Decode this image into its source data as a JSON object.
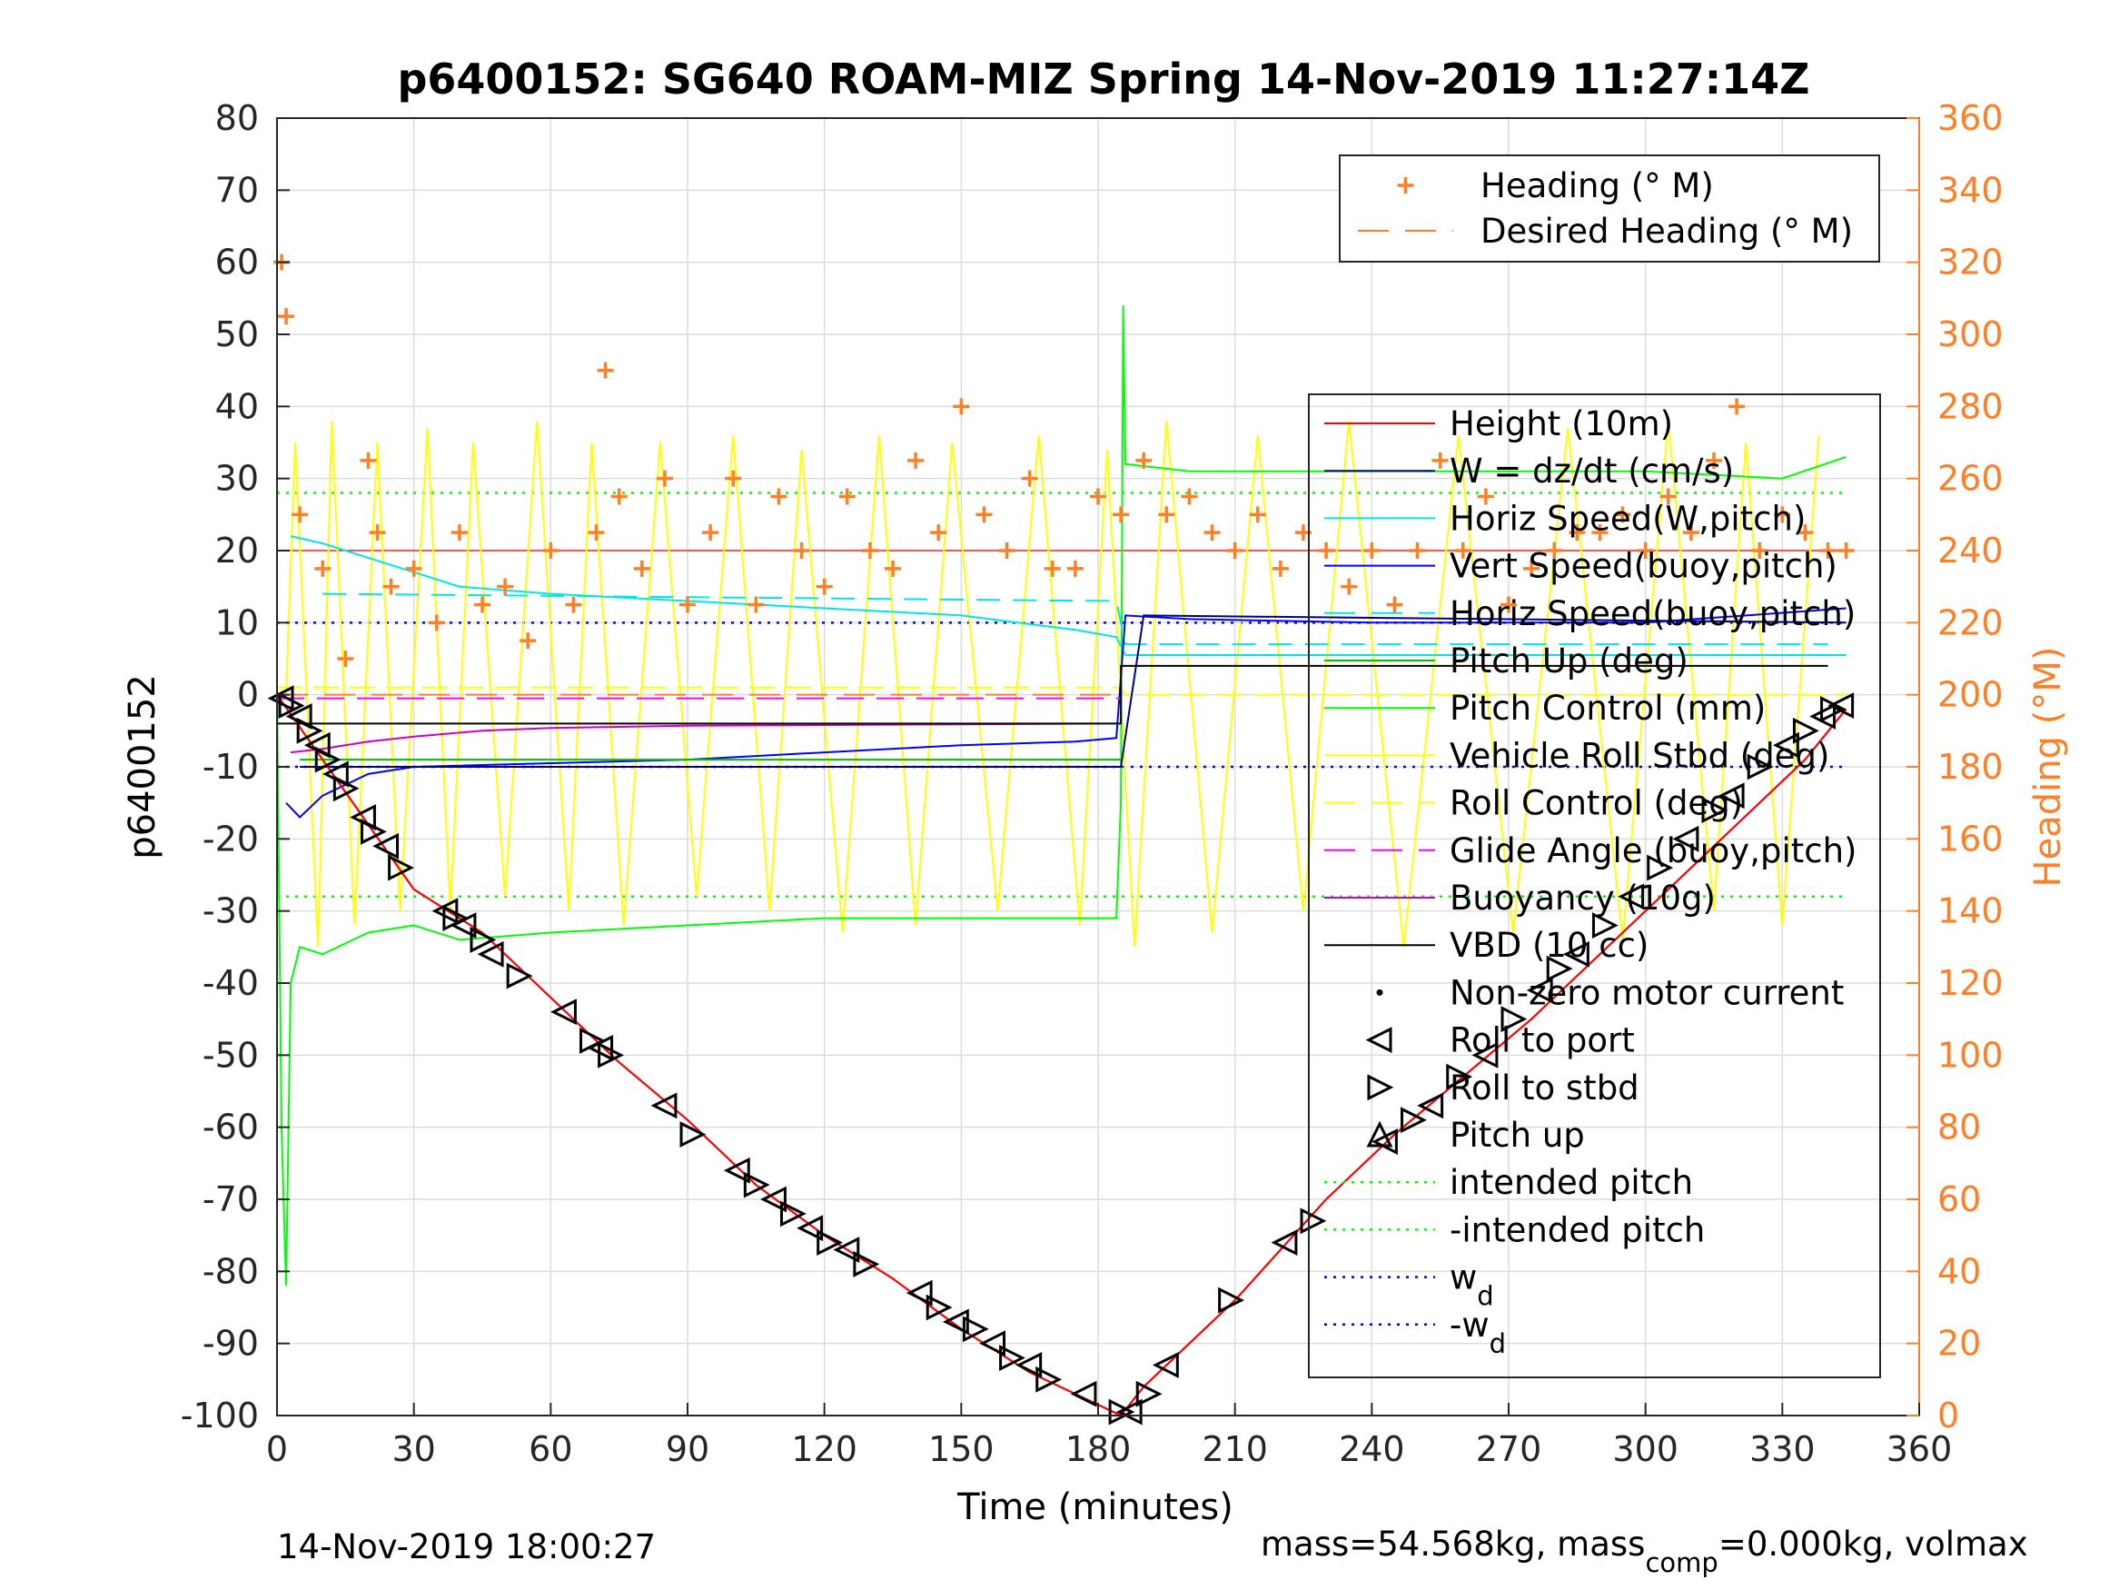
{
  "chart_data": {
    "type": "line",
    "title": "p6400152: SG640 ROAM-MIZ Spring 14-Nov-2019 11:27:14Z",
    "xlabel": "Time (minutes)",
    "ylabel_left": "p6400152",
    "ylabel_right": "Heading (°M)",
    "xlim": [
      0,
      360
    ],
    "ylim_left": [
      -100,
      80
    ],
    "ylim_right": [
      0,
      360
    ],
    "x_ticks": [
      "0",
      "30",
      "60",
      "90",
      "120",
      "150",
      "180",
      "210",
      "240",
      "270",
      "300",
      "330",
      "360"
    ],
    "y_ticks_left": [
      "80",
      "70",
      "60",
      "50",
      "40",
      "30",
      "20",
      "10",
      "0",
      "-10",
      "-20",
      "-30",
      "-40",
      "-50",
      "-60",
      "-70",
      "-80",
      "-90",
      "-100"
    ],
    "y_ticks_right": [
      "360",
      "340",
      "320",
      "300",
      "280",
      "260",
      "240",
      "220",
      "200",
      "180",
      "160",
      "140",
      "120",
      "100",
      "80",
      "60",
      "40",
      "20",
      "0"
    ],
    "grid": true,
    "footer_left": "14-Nov-2019 18:00:27",
    "footer_right": {
      "a": "mass=54.568kg, mass",
      "sub": "comp",
      "b": "=0.000kg, volmax"
    },
    "legend_heading": [
      {
        "label": "Heading (° M)",
        "color": "#ff7f27",
        "style": "plus"
      },
      {
        "label": "Desired Heading (° M)",
        "color": "#ff7f27",
        "style": "dash"
      }
    ],
    "legend_main": [
      {
        "label": "Height (10m)",
        "color": "#ff0000",
        "style": "line"
      },
      {
        "label": "W = dz/dt (cm/s)",
        "color": "#000080",
        "style": "line"
      },
      {
        "label": "Horiz Speed(W,pitch)",
        "color": "#00e5e5",
        "style": "line"
      },
      {
        "label": "Vert Speed(buoy,pitch)",
        "color": "#0000ff",
        "style": "line"
      },
      {
        "label": "Horiz Speed(buoy,pitch)",
        "color": "#00e5e5",
        "style": "dash"
      },
      {
        "label": "Pitch Up (deg)",
        "color": "#00c000",
        "style": "line"
      },
      {
        "label": "Pitch Control (mm)",
        "color": "#00ff00",
        "style": "line"
      },
      {
        "label": "Vehicle Roll Stbd (deg)",
        "color": "#ffff00",
        "style": "line"
      },
      {
        "label": "Roll Control (deg)",
        "color": "#ffff00",
        "style": "dash"
      },
      {
        "label": "Glide Angle (buoy,pitch)",
        "color": "#ff00ff",
        "style": "dash"
      },
      {
        "label": "Buoyancy (10g)",
        "color": "#cc00cc",
        "style": "line"
      },
      {
        "label": "VBD (10 cc)",
        "color": "#000000",
        "style": "line"
      },
      {
        "label": "Non-zero motor current",
        "color": "#000000",
        "style": "dot"
      },
      {
        "label": "Roll to port",
        "color": "#000000",
        "style": "tri-left"
      },
      {
        "label": "Roll to stbd",
        "color": "#000000",
        "style": "tri-right"
      },
      {
        "label": "Pitch up",
        "color": "#000000",
        "style": "tri-up"
      },
      {
        "label": "intended pitch",
        "color": "#00ff00",
        "style": "dot-line"
      },
      {
        "label": "-intended pitch",
        "color": "#00ff00",
        "style": "dot-line"
      },
      {
        "label": "w",
        "sub": "d",
        "color": "#0000ff",
        "style": "dot-line"
      },
      {
        "label": "-w",
        "sub": "d",
        "color": "#0000ff",
        "style": "dot-line"
      }
    ],
    "series": {
      "depth_profile": {
        "name": "Height (10m)",
        "color": "#ff0000",
        "x": [
          0,
          10,
          20,
          30,
          45,
          60,
          75,
          90,
          105,
          120,
          135,
          150,
          165,
          175,
          185,
          190,
          200,
          210,
          220,
          230,
          245,
          260,
          275,
          290,
          305,
          320,
          335,
          344
        ],
        "y": [
          0,
          -9,
          -18,
          -27,
          -33,
          -42,
          -51,
          -59,
          -68,
          -75,
          -81,
          -88,
          -94,
          -97,
          -100,
          -96,
          -90,
          -84,
          -77,
          -70,
          -61,
          -53,
          -45,
          -36,
          -27,
          -18,
          -9,
          -2
        ]
      },
      "heading": {
        "name": "Heading (° M)",
        "color": "#ff7f27",
        "x": [
          1,
          2,
          5,
          10,
          15,
          20,
          22,
          25,
          30,
          35,
          40,
          45,
          50,
          55,
          60,
          65,
          70,
          72,
          75,
          80,
          85,
          90,
          95,
          100,
          105,
          110,
          115,
          120,
          125,
          130,
          135,
          140,
          145,
          150,
          155,
          160,
          165,
          170,
          175,
          180,
          185,
          190,
          195,
          200,
          205,
          210,
          215,
          220,
          225,
          230,
          235,
          240,
          245,
          250,
          255,
          260,
          265,
          270,
          275,
          280,
          285,
          290,
          295,
          300,
          305,
          310,
          315,
          320,
          325,
          330,
          335,
          340,
          344
        ],
        "y": [
          320,
          305,
          250,
          235,
          210,
          265,
          245,
          230,
          235,
          220,
          245,
          225,
          230,
          215,
          240,
          225,
          245,
          290,
          255,
          235,
          260,
          225,
          245,
          260,
          225,
          255,
          240,
          230,
          255,
          240,
          235,
          265,
          245,
          280,
          250,
          240,
          260,
          235,
          235,
          255,
          250,
          265,
          250,
          255,
          245,
          240,
          250,
          235,
          245,
          240,
          230,
          240,
          225,
          240,
          265,
          240,
          255,
          225,
          235,
          240,
          245,
          245,
          250,
          240,
          255,
          245,
          265,
          280,
          240,
          250,
          245,
          240,
          240
        ]
      },
      "desired_heading": {
        "name": "Desired Heading (° M)",
        "color": "#ff7f27",
        "x": [
          0,
          185
        ],
        "y": [
          200,
          200
        ]
      },
      "pitch_control": {
        "name": "Pitch Control (mm)",
        "color": "#00ff00",
        "x": [
          0,
          1,
          2,
          3,
          5,
          10,
          20,
          30,
          40,
          60,
          90,
          120,
          150,
          170,
          184,
          185,
          185.5,
          186,
          200,
          240,
          270,
          300,
          330,
          344
        ],
        "y": [
          0,
          -60,
          -82,
          -40,
          -35,
          -36,
          -33,
          -32,
          -34,
          -33,
          -32,
          -31,
          -31,
          -31,
          -31,
          -15,
          54,
          32,
          31,
          31,
          31,
          31,
          30,
          33
        ]
      },
      "horiz_speed": {
        "name": "Horiz Speed(W,pitch)",
        "color": "#00e5e5",
        "x": [
          3,
          10,
          20,
          30,
          40,
          60,
          90,
          120,
          150,
          175,
          184,
          186,
          240,
          300,
          344
        ],
        "y": [
          22,
          21,
          19,
          17,
          15,
          14,
          13,
          12,
          11,
          9,
          8,
          5.5,
          5.5,
          5.5,
          5.5
        ]
      },
      "vert_speed": {
        "name": "Vert Speed(buoy,pitch)",
        "color": "#0000ff",
        "x": [
          2,
          5,
          10,
          20,
          30,
          60,
          90,
          120,
          150,
          175,
          184,
          186,
          200,
          240,
          300,
          344
        ],
        "y": [
          -15,
          -17,
          -14,
          -11,
          -10,
          -9.5,
          -9,
          -8,
          -7,
          -6.5,
          -6,
          11,
          10.5,
          10,
          10,
          12
        ]
      },
      "vbd": {
        "name": "VBD (10 cc)",
        "color": "#000000",
        "x": [
          0,
          185,
          185,
          340
        ],
        "y": [
          -4,
          -4,
          4,
          4
        ]
      },
      "buoyancy": {
        "name": "Buoyancy (10g)",
        "color": "#cc00cc",
        "x": [
          3,
          10,
          20,
          30,
          45,
          60,
          90,
          120,
          150,
          180
        ],
        "y": [
          -8,
          -7.5,
          -6.5,
          -5.8,
          -5,
          -4.6,
          -4.3,
          -4.2,
          -4.1,
          -4
        ]
      },
      "horiz_speed_buoy": {
        "name": "Horiz Speed(buoy,pitch)",
        "color": "#00e5e5",
        "x": [
          10,
          184,
          186,
          340
        ],
        "y": [
          14,
          13,
          7,
          7
        ]
      },
      "roll_stbd": {
        "name": "Vehicle Roll Stbd (deg)",
        "color": "#ffff00",
        "x": [
          2,
          4,
          9,
          12,
          17,
          22,
          27,
          33,
          38,
          43,
          50,
          57,
          64,
          69,
          76,
          84,
          92,
          100,
          108,
          115,
          124,
          132,
          140,
          148,
          158,
          167,
          176,
          182,
          188,
          195,
          205,
          215,
          225,
          235,
          247,
          259,
          271,
          283,
          295,
          305,
          315,
          322,
          330,
          338
        ],
        "y": [
          0,
          35,
          -35,
          38,
          -32,
          35,
          -30,
          37,
          -30,
          35,
          -28,
          38,
          -30,
          35,
          -32,
          35,
          -28,
          36,
          -30,
          34,
          -33,
          36,
          -32,
          35,
          -30,
          36,
          -32,
          34,
          -35,
          38,
          -33,
          36,
          -30,
          38,
          -35,
          36,
          -33,
          37,
          -34,
          38,
          -30,
          35,
          -32,
          36
        ]
      },
      "roll_control": {
        "name": "Roll Control (deg)",
        "color": "#ffff00",
        "x": [
          0,
          185,
          186,
          344
        ],
        "y": [
          1,
          1,
          0,
          0
        ]
      },
      "glide_angle": {
        "name": "Glide Angle (buoy,pitch)",
        "color": "#ff00ff",
        "x": [
          0,
          185
        ],
        "y": [
          -0.5,
          -0.5
        ]
      },
      "pitch_up": {
        "name": "Pitch Up (deg)",
        "color": "#00c000",
        "x": [
          5,
          185
        ],
        "y": [
          -9,
          -9
        ]
      },
      "w_dzdt": {
        "name": "W = dz/dt (cm/s)",
        "color": "#000080",
        "x": [
          5,
          185,
          190,
          344
        ],
        "y": [
          -10,
          -10,
          11,
          10
        ]
      }
    },
    "reference_lines": [
      {
        "label": "intended pitch",
        "y": 28,
        "color": "#00ff00"
      },
      {
        "label": "-intended pitch",
        "y": -28,
        "color": "#00ff00"
      },
      {
        "label": "w_d",
        "y": 10,
        "color": "#0000ff"
      },
      {
        "label": "-w_d",
        "y": -10,
        "color": "#0000ff"
      },
      {
        "label": "Height (10m)",
        "y": 20,
        "color": "#ff0000"
      }
    ],
    "roll_markers": {
      "x": [
        1,
        3,
        5,
        7,
        9,
        11,
        13,
        15,
        19,
        21,
        24,
        27,
        37,
        39,
        41,
        45,
        47,
        53,
        63,
        69,
        71,
        73,
        85,
        91,
        101,
        105,
        109,
        113,
        117,
        121,
        125,
        129,
        141,
        145,
        149,
        153,
        157,
        161,
        165,
        169,
        177,
        185,
        187,
        191,
        195,
        209,
        221,
        227,
        243,
        249,
        253,
        259,
        265,
        271,
        277,
        281,
        285,
        291,
        297,
        303,
        309,
        315,
        319,
        325,
        331,
        335,
        339,
        341,
        343
      ],
      "y": [
        -0.5,
        -1.5,
        -3,
        -5,
        -7,
        -9,
        -11,
        -13,
        -17,
        -19,
        -21,
        -24,
        -30,
        -31,
        -32,
        -34,
        -36,
        -39,
        -44,
        -48,
        -49,
        -50,
        -57,
        -61,
        -66,
        -68,
        -70,
        -72,
        -74,
        -76,
        -77,
        -79,
        -83,
        -85,
        -87,
        -88,
        -90,
        -92,
        -93,
        -95,
        -97,
        -99.5,
        -99.5,
        -97,
        -93,
        -84,
        -76,
        -73,
        -62,
        -59,
        -57,
        -53,
        -50,
        -45,
        -41,
        -38,
        -36,
        -32,
        -28,
        -24,
        -20,
        -16,
        -14,
        -10,
        -7,
        -5,
        -3,
        -2,
        -1.5
      ]
    }
  }
}
